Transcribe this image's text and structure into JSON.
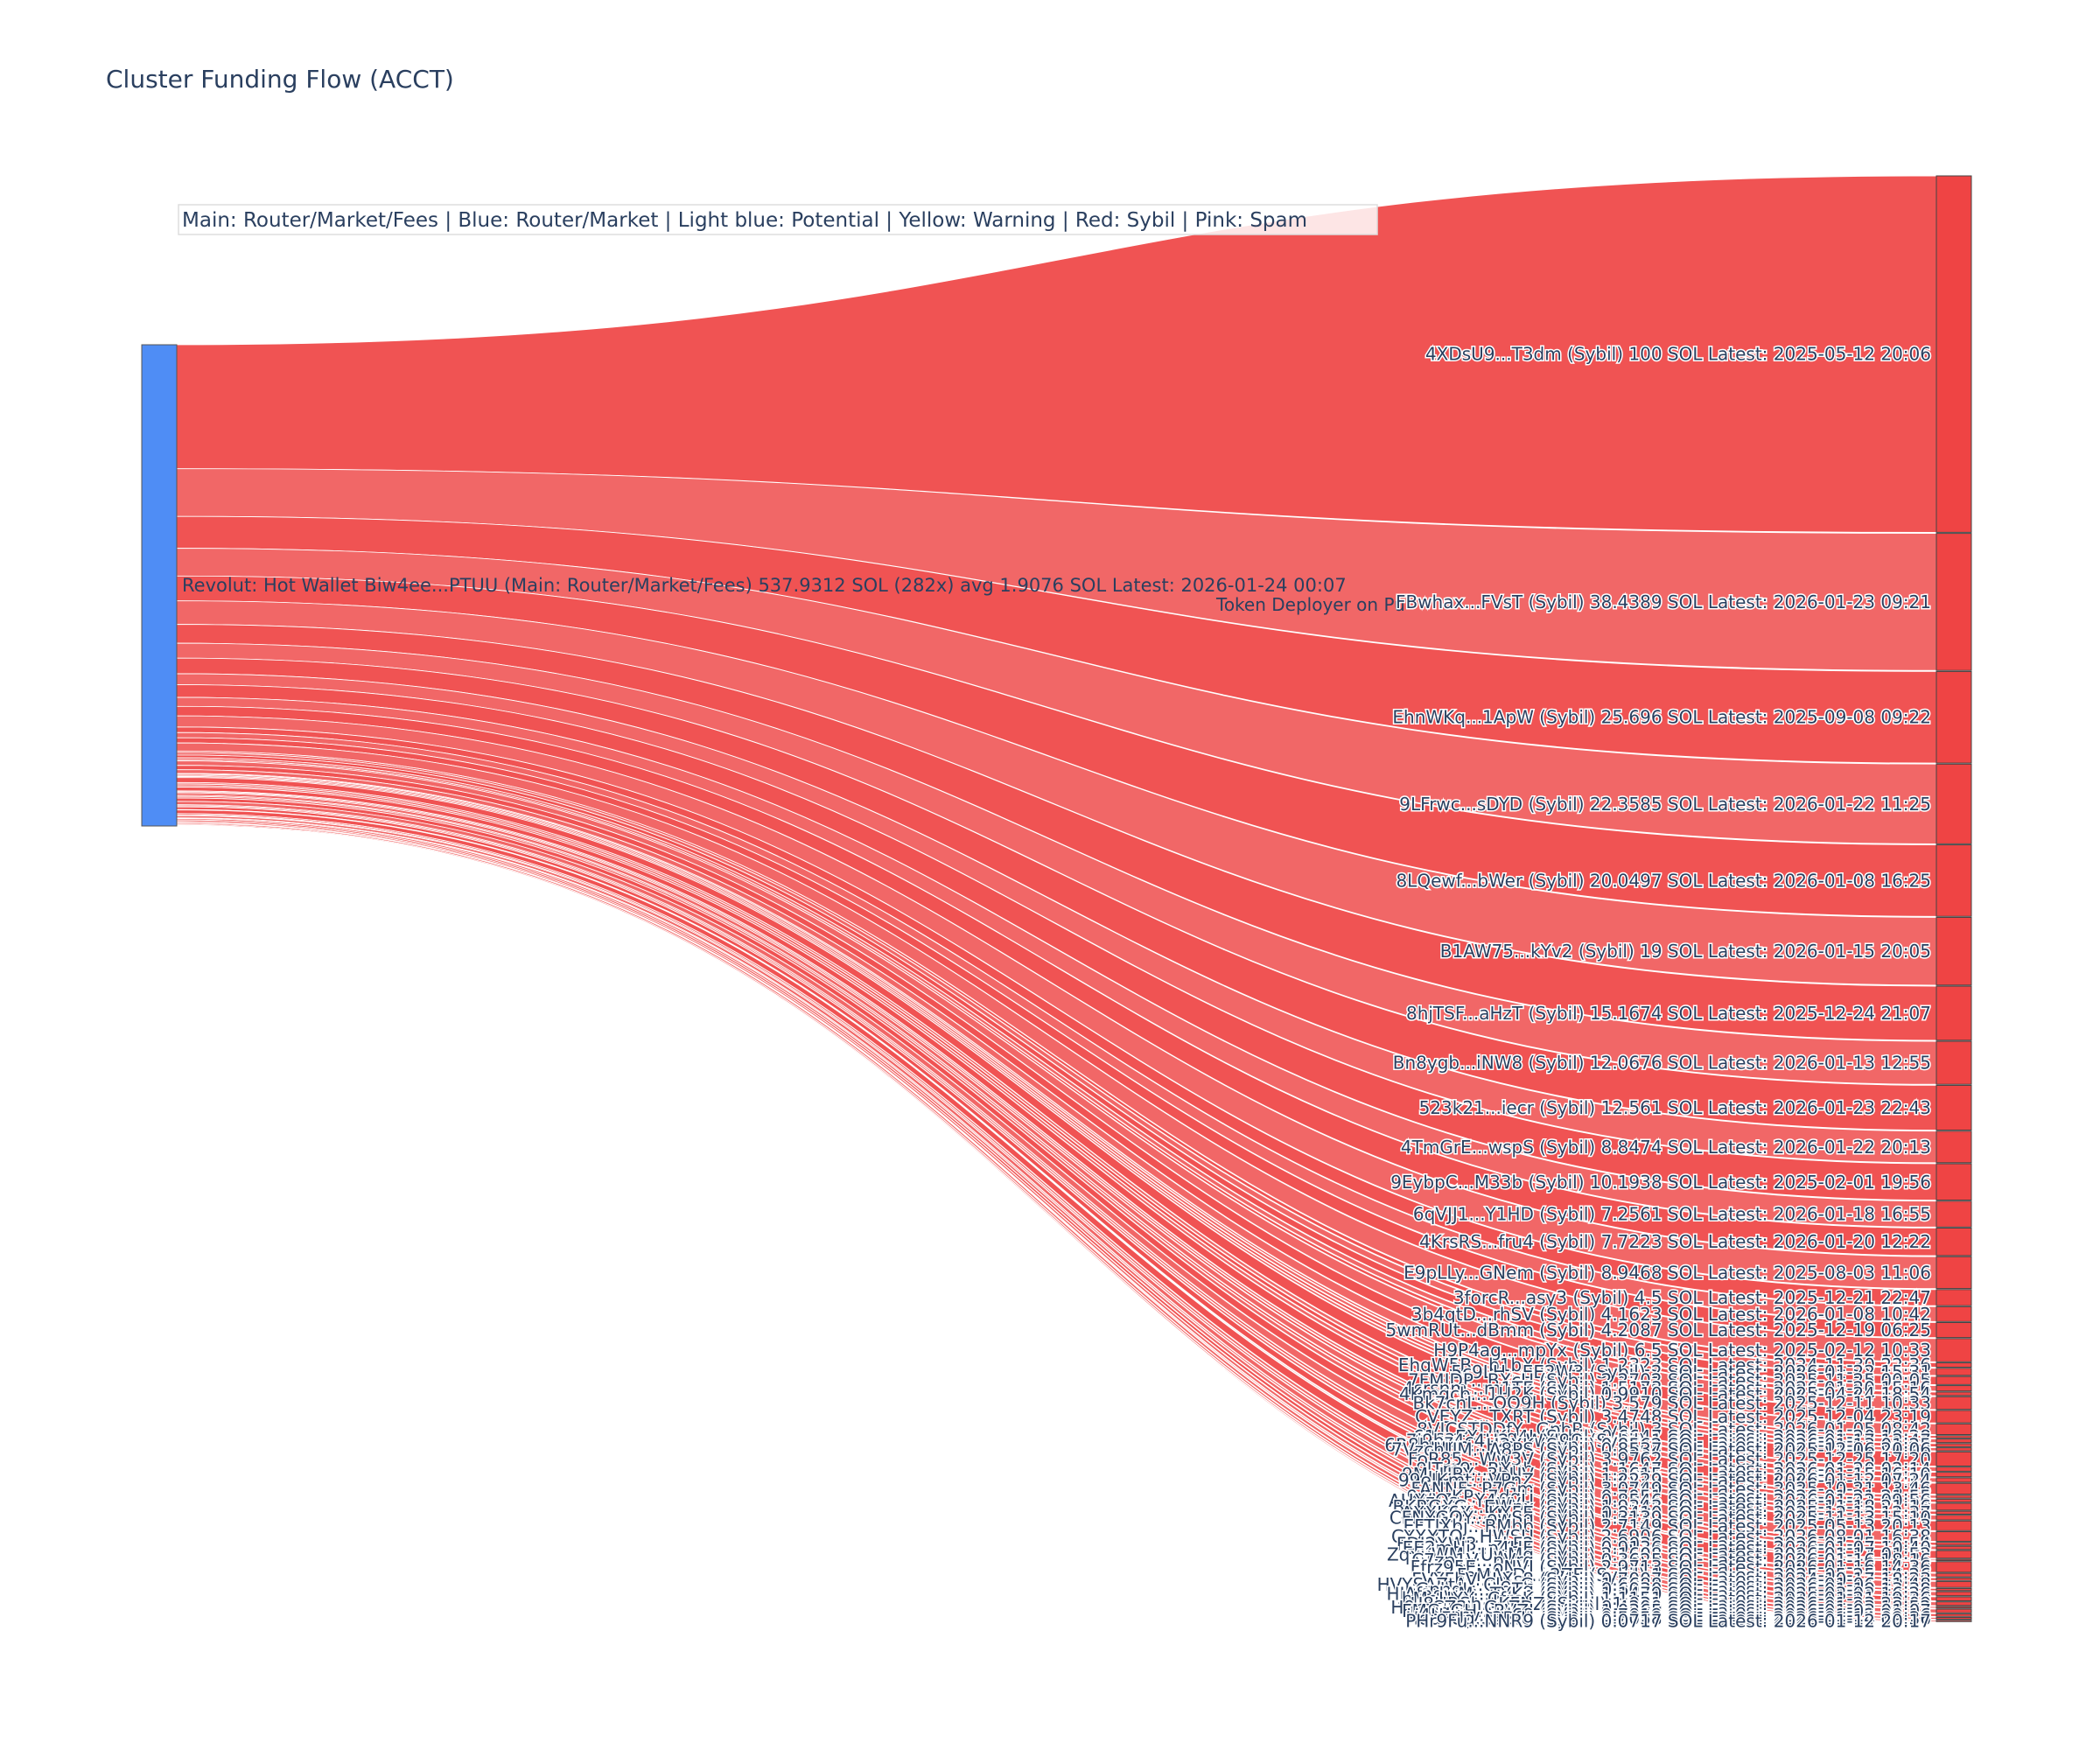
{
  "title": "Cluster Funding Flow (ACCT)",
  "legend": "Main: Router/Market/Fees  |  Blue: Router/Market | Light blue: Potential | Yellow: Warning | Red: Sybil | Pink: Spam",
  "colors": {
    "source_node": "#4f8df5",
    "sybil_link": "#ef4444",
    "sybil_link_alt": "#f05a5a",
    "text": "#2a3f5f"
  },
  "chart_data": {
    "type": "sankey",
    "source": {
      "label": "Revolut: Hot Wallet Biw4ee...PTUU (Main: Router/Market/Fees) 537.9312 SOL (282x) avg 1.9076 SOL Latest: 2026-01-24 00:07"
    },
    "side_label": "Token Deployer on Pu",
    "targets": [
      {
        "label": "4XDsU9...T3dm (Sybil) 100 SOL Latest: 2025-05-12 20:06",
        "value": 100
      },
      {
        "label": "FBwhax...FVsT (Sybil) 38.4389 SOL Latest: 2026-01-23 09:21",
        "value": 38.4389
      },
      {
        "label": "EhnWKq...1ApW (Sybil) 25.696 SOL Latest: 2025-09-08 09:22",
        "value": 25.696
      },
      {
        "label": "9LFrwc...sDYD (Sybil) 22.3585 SOL Latest: 2026-01-22 11:25",
        "value": 22.3585
      },
      {
        "label": "8LQewf...bWer (Sybil) 20.0497 SOL Latest: 2026-01-08 16:25",
        "value": 20.0497
      },
      {
        "label": "B1AW75...kYv2 (Sybil) 19 SOL Latest: 2026-01-15 20:05",
        "value": 19
      },
      {
        "label": "8hjTSF...aHzT (Sybil) 15.1674 SOL Latest: 2025-12-24 21:07",
        "value": 15.1674
      },
      {
        "label": "Bn8ygb...iNW8 (Sybil) 12.0676 SOL Latest: 2026-01-13 12:55",
        "value": 12.0676
      },
      {
        "label": "523k21...iecr (Sybil) 12.561 SOL Latest: 2026-01-23 22:43",
        "value": 12.561
      },
      {
        "label": "4TmGrE...wspS (Sybil) 8.8474 SOL Latest: 2026-01-22 20:13",
        "value": 8.8474
      },
      {
        "label": "9EybpC...M33b (Sybil) 10.1938 SOL Latest: 2025-02-01 19:56",
        "value": 10.1938
      },
      {
        "label": "6qVJJ1...Y1HD (Sybil) 7.2561 SOL Latest: 2026-01-18 16:55",
        "value": 7.2561
      },
      {
        "label": "4KrsRS...fru4 (Sybil) 7.7223 SOL Latest: 2026-01-20 12:22",
        "value": 7.7223
      },
      {
        "label": "E9pLLy...GNem (Sybil) 8.9468 SOL Latest: 2025-08-03 11:06",
        "value": 8.9468
      },
      {
        "label": "3forcR...asy3 (Sybil) 4.5 SOL Latest: 2025-12-21 22:47",
        "value": 4.5
      },
      {
        "label": "3b4qtD...rhSV (Sybil) 4.1623 SOL Latest: 2026-01-08 10:42",
        "value": 4.1623
      },
      {
        "label": "5wmRUt...dBmm (Sybil) 4.2087 SOL Latest: 2025-12-19 06:25",
        "value": 4.2087
      },
      {
        "label": "H9P4ag...mpYx (Sybil) 6.5 SOL Latest: 2025-02-12 10:33",
        "value": 6.5
      },
      {
        "label": "EhqW5B...b1bX (Sybil) 1.2323 SOL Latest: 2024-11-30 22:36",
        "value": 1.2323
      },
      {
        "label": "5c9LH...EE2W3 (Sybil) 2 SOL Latest: 2026-01-22 15:31",
        "value": 2
      },
      {
        "label": "7FMJDP...BXcU (Sybil) 2.2702 SOL Latest: 2025-11-25 00:05",
        "value": 2.2702
      },
      {
        "label": "4srsnm...m1TE (Sybil) 1.5173 SOL Latest: 2026-01-20 15:16",
        "value": 1.5173
      },
      {
        "label": "4Kmgcb...1U2K (Sybil) 0.9910 SOL Latest: 2025-04-24 18:54",
        "value": 0.991
      },
      {
        "label": "Bk7cnL...QQ9H (Sybil) 3.579 SOL Latest: 2025-12-11 10:33",
        "value": 3.579
      },
      {
        "label": "CVEYZ...TXRT (Sybil) 3.4748 SOL Latest: 2025-12-04 23:19",
        "value": 3.4748
      },
      {
        "label": "8VJCSTDDfY...GpbR (Sybil) 3 SOL Latest: 2026-01-05 08:42",
        "value": 3
      },
      {
        "label": "61saEX...Kg4J (Sybil) 0.6647 SOL Latest: 2026-01-20 18:28",
        "value": 0.6647
      },
      {
        "label": "7j9bz4c4U2...WYJ9Q (Sybil) 1 SOL Latest: 2026-01-17 13:47",
        "value": 1
      },
      {
        "label": "6R8hnmn...H3XK (Sybil) 0.8562 SOL Latest: 2026-01-13 01:25",
        "value": 0.8562
      },
      {
        "label": "7VzchUM...A8PS (Sybil) 0.8537 SOL Latest: 2025-12-06 20:06",
        "value": 0.8537
      },
      {
        "label": "FoR85...Ww3V (Sybil) 3.9762 SOL Latest: 2025-12-25 17:20",
        "value": 3.9762
      },
      {
        "label": "9lTm9...RXub (Sybil) 1.1647 SOL Latest: 2026-01-20 02:14",
        "value": 1.1647
      },
      {
        "label": "9MuUBY...3bUV (Sybil) 1.2615 SOL Latest: 2026-01-15 16:10",
        "value": 1.2615
      },
      {
        "label": "99eJKmt...VPnZ (Sybil) 1.2229 SOL Latest: 2026-01-12 07:24",
        "value": 1.2229
      },
      {
        "label": "FANNF...P7Gm (Sybil) 3.0749 SOL Latest: 2025-10-21 13:46",
        "value": 3.0749
      },
      {
        "label": "9wyzKP...7dqU (Sybil) 0.7951 SOL Latest: 2026-01-21 21:55",
        "value": 0.7951
      },
      {
        "label": "AHXzQs...Y4wvU (Sybil) 0.8546 SOL Latest: 2026-01-22 09:56",
        "value": 0.8546
      },
      {
        "label": "BKRGXG...EWpx (Sybil) 1.9343 SOL Latest: 2025-11-18 21:16",
        "value": 1.9343
      },
      {
        "label": "AXXK6X...KX5E (Sybil) 0.8410 SOL Latest: 2025-12-13 12:37",
        "value": 0.841
      },
      {
        "label": "CFNYGQY...owSq (Sybil) 1.3139 SOL Latest: 2025-11-13 15:10",
        "value": 1.3139
      },
      {
        "label": "EFTJXbj...BMbb (Sybil) 2.7149 SOL Latest: 2025-05-13 20:13",
        "value": 2.7149
      },
      {
        "label": "GYXXTQ...HWSU (Sybil) 2.6906 SOL Latest: 2026-08-01 16:38",
        "value": 2.6906
      },
      {
        "label": "FDJ2XW3...zkF2 (Sybil) 0.8038 SOL Latest: 2026-01-15 18:54",
        "value": 0.8038
      },
      {
        "label": "EE2mHi...p4HE (Sybil) 0.9136 SOL Latest: 2026-01-07 10:40",
        "value": 0.9136
      },
      {
        "label": "ZqxuWM...UwMg (Sybil) 2.1608 SOL Latest: 2026-01-17 01:52",
        "value": 2.1608
      },
      {
        "label": "C7zp1V...pVrq (Sybil) 0.3625 SOL Latest: 2026-01-16 18:16",
        "value": 0.3625
      },
      {
        "label": "Ffrz95E...oNVJ (Sybil) 2.9713 SOL Latest: 2026-01-16 14:36",
        "value": 2.9713
      },
      {
        "label": "FaMAcD...r2ZE (Sybil) 1 SOL Latest: 2025-05-25 14:26",
        "value": 1
      },
      {
        "label": "FVYFhV...LXs8 (Sybil) 0.7007 SOL Latest: 2024-10-17 18:23",
        "value": 0.7007
      },
      {
        "label": "HVYSAZtA...ClesG (Sybil) 1.6688 SOL Latest: 2026-01-06 11:48",
        "value": 1.6688
      },
      {
        "label": "GnhdJr...ggTq (Sybil) 0.6030 SOL Latest: 2026-01-19 13:38",
        "value": 0.603
      },
      {
        "label": "HJAfadwM...TYKn (Sybil) 1.1479 SOL Latest: 2025-03-02 16:26",
        "value": 1.1479
      },
      {
        "label": "bMoHXY...CfrcK (Sybil) 1.1151 SOL Latest: 2026-01-21 19:36",
        "value": 1.1151
      },
      {
        "label": "U8HRSh...KFNZ (Sybil) 1.031 SOL Latest: 2026-01-23 23:09",
        "value": 1.031
      },
      {
        "label": "H9mCZ2...GaZD (Sybil) 0.4200 SOL Latest: 2026-01-03 18:52",
        "value": 0.42
      },
      {
        "label": "FMCqGH...RVZJ (Sybil) 1.0365 SOL Latest: 2026-01-03 01:07",
        "value": 1.0365
      },
      {
        "label": "H4Hmsv...hi68 (Sybil) 0.7019 SOL Latest: 2026-01-12 20:16",
        "value": 0.7019
      },
      {
        "label": "HquFUg...3BfU (Sybil) 0.5058 SOL Latest: 2026-01-14 09:36",
        "value": 0.5058
      },
      {
        "label": "PHr9Fu...NNR9 (Sybil) 0.0717 SOL Latest: 2026-01-12 20:17",
        "value": 0.0717
      }
    ]
  }
}
